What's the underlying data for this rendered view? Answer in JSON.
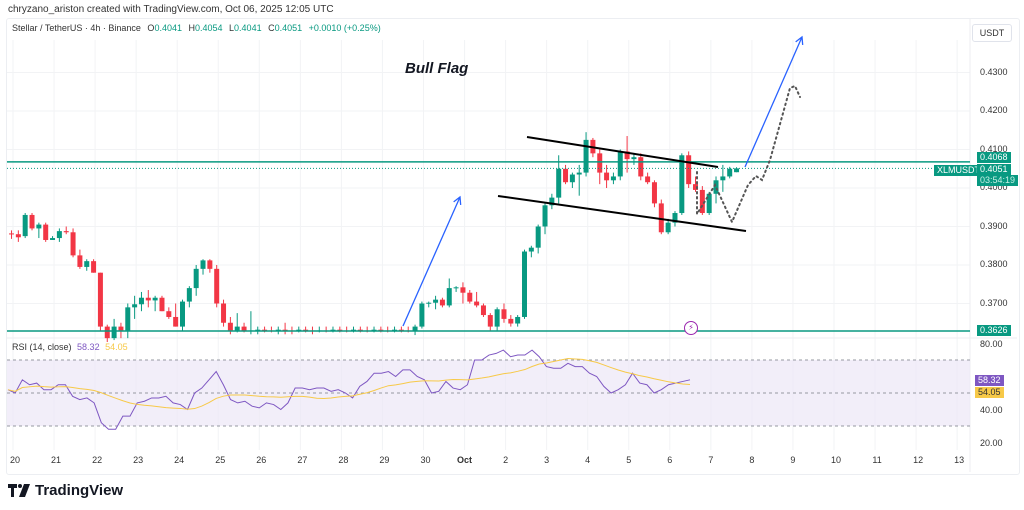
{
  "credit": "chryzano_ariston created with TradingView.com, Oct 06, 2025 12:05 UTC",
  "header": {
    "symbol": "Stellar / TetherUS · 4h · Binance",
    "open_label": "O",
    "open": "0.4041",
    "high_label": "H",
    "high": "0.4054",
    "low_label": "L",
    "low": "0.4041",
    "close_label": "C",
    "close": "0.4051",
    "change": "+0.0010 (+0.25%)"
  },
  "currency_button": "USDT",
  "annotation": "Bull Flag",
  "price_axis": [
    "0.4300",
    "0.4200",
    "0.4100",
    "0.4000",
    "0.3900",
    "0.3800",
    "0.3700"
  ],
  "price_tags": {
    "resistance": "0.4068",
    "symbol": "XLMUSDT",
    "last_price": "0.4051",
    "countdown": "03:54:19",
    "support": "0.3626"
  },
  "rsi": {
    "label": "RSI (14, close)",
    "value": "58.32",
    "ma_value": "54.05",
    "axis": [
      "80.00",
      "40.00",
      "20.00"
    ]
  },
  "date_axis": [
    "20",
    "21",
    "22",
    "23",
    "24",
    "25",
    "26",
    "27",
    "28",
    "29",
    "30",
    "Oct",
    "2",
    "3",
    "4",
    "5",
    "6",
    "7",
    "8",
    "9",
    "10",
    "11",
    "12",
    "13"
  ],
  "brand": "TradingView",
  "colors": {
    "up": "#089981",
    "down": "#f23645",
    "level_line": "#089981",
    "arrow": "#2962ff",
    "rsi_line": "#7e57c2",
    "rsi_ma": "#f7c948",
    "rsi_band": "#ede7f6"
  },
  "chart_data": {
    "type": "candlestick",
    "title": "Stellar / TetherUS · 4h · Binance",
    "annotation": "Bull Flag",
    "xlabel": "",
    "ylabel": "USDT",
    "ylim": [
      0.36,
      0.438
    ],
    "x_ticks": [
      "20",
      "21",
      "22",
      "23",
      "24",
      "25",
      "26",
      "27",
      "28",
      "29",
      "30",
      "Oct",
      "2",
      "3",
      "4",
      "5",
      "6",
      "7",
      "8",
      "9",
      "10",
      "11",
      "12",
      "13"
    ],
    "horizontal_levels": [
      0.4068,
      0.3626
    ],
    "last_price": 0.4051,
    "ohlc_approx": [
      [
        0.3882,
        0.389,
        0.3868,
        0.388
      ],
      [
        0.388,
        0.389,
        0.386,
        0.3872
      ],
      [
        0.3875,
        0.3935,
        0.387,
        0.393
      ],
      [
        0.393,
        0.3935,
        0.389,
        0.3895
      ],
      [
        0.3895,
        0.391,
        0.387,
        0.3905
      ],
      [
        0.3905,
        0.391,
        0.386,
        0.3865
      ],
      [
        0.3865,
        0.3875,
        0.3865,
        0.387
      ],
      [
        0.387,
        0.3895,
        0.386,
        0.3888
      ],
      [
        0.3888,
        0.39,
        0.388,
        0.3885
      ],
      [
        0.3885,
        0.3895,
        0.382,
        0.3825
      ],
      [
        0.3825,
        0.384,
        0.379,
        0.3795
      ],
      [
        0.3795,
        0.3815,
        0.3785,
        0.381
      ],
      [
        0.381,
        0.3815,
        0.378,
        0.378
      ],
      [
        0.378,
        0.378,
        0.363,
        0.364
      ],
      [
        0.364,
        0.3645,
        0.36,
        0.361
      ],
      [
        0.361,
        0.366,
        0.3605,
        0.364
      ],
      [
        0.364,
        0.365,
        0.361,
        0.363
      ],
      [
        0.363,
        0.37,
        0.361,
        0.369
      ],
      [
        0.369,
        0.372,
        0.366,
        0.3698
      ],
      [
        0.3698,
        0.373,
        0.368,
        0.3715
      ],
      [
        0.3715,
        0.3735,
        0.369,
        0.3708
      ],
      [
        0.3708,
        0.372,
        0.368,
        0.3715
      ],
      [
        0.3715,
        0.372,
        0.368,
        0.368
      ],
      [
        0.368,
        0.369,
        0.366,
        0.3665
      ],
      [
        0.3665,
        0.37,
        0.364,
        0.364
      ],
      [
        0.364,
        0.371,
        0.363,
        0.3705
      ],
      [
        0.3705,
        0.3745,
        0.369,
        0.374
      ],
      [
        0.374,
        0.38,
        0.372,
        0.379
      ],
      [
        0.379,
        0.3815,
        0.3775,
        0.3812
      ],
      [
        0.3812,
        0.3815,
        0.378,
        0.379
      ],
      [
        0.379,
        0.38,
        0.369,
        0.37
      ],
      [
        0.37,
        0.371,
        0.364,
        0.365
      ],
      [
        0.365,
        0.3665,
        0.362,
        0.363
      ],
      [
        0.363,
        0.3675,
        0.3625,
        0.364
      ],
      [
        0.364,
        0.365,
        0.3625,
        0.3628
      ],
      [
        0.3628,
        0.368,
        0.362,
        0.363
      ],
      [
        0.363,
        0.364,
        0.362,
        0.3632
      ],
      [
        0.3632,
        0.364,
        0.3625,
        0.363
      ],
      [
        0.363,
        0.364,
        0.3625,
        0.3628
      ],
      [
        0.3628,
        0.364,
        0.362,
        0.3632
      ],
      [
        0.3632,
        0.365,
        0.362,
        0.363
      ],
      [
        0.363,
        0.364,
        0.362,
        0.3628
      ],
      [
        0.3628,
        0.364,
        0.3625,
        0.3632
      ],
      [
        0.3632,
        0.364,
        0.3625,
        0.363
      ],
      [
        0.363,
        0.364,
        0.362,
        0.3628
      ],
      [
        0.3628,
        0.364,
        0.3625,
        0.363
      ],
      [
        0.363,
        0.364,
        0.3625,
        0.3628
      ],
      [
        0.3628,
        0.364,
        0.3625,
        0.3632
      ],
      [
        0.3632,
        0.364,
        0.3625,
        0.363
      ],
      [
        0.363,
        0.364,
        0.3625,
        0.3628
      ],
      [
        0.3628,
        0.364,
        0.3625,
        0.3632
      ],
      [
        0.3632,
        0.364,
        0.3625,
        0.363
      ],
      [
        0.363,
        0.364,
        0.3625,
        0.3628
      ],
      [
        0.3628,
        0.364,
        0.3625,
        0.3632
      ],
      [
        0.3632,
        0.364,
        0.3625,
        0.363
      ],
      [
        0.363,
        0.364,
        0.3625,
        0.3628
      ],
      [
        0.3628,
        0.364,
        0.3625,
        0.3632
      ],
      [
        0.3632,
        0.364,
        0.3625,
        0.363
      ],
      [
        0.363,
        0.364,
        0.3625,
        0.3628
      ],
      [
        0.3628,
        0.3645,
        0.3618,
        0.364
      ],
      [
        0.364,
        0.3705,
        0.3635,
        0.37
      ],
      [
        0.37,
        0.3705,
        0.369,
        0.3702
      ],
      [
        0.3702,
        0.372,
        0.3685,
        0.371
      ],
      [
        0.371,
        0.3715,
        0.369,
        0.3695
      ],
      [
        0.3695,
        0.3765,
        0.369,
        0.374
      ],
      [
        0.374,
        0.3745,
        0.373,
        0.3742
      ],
      [
        0.3742,
        0.3755,
        0.37,
        0.3728
      ],
      [
        0.3728,
        0.3735,
        0.37,
        0.3705
      ],
      [
        0.3705,
        0.373,
        0.369,
        0.3695
      ],
      [
        0.3695,
        0.37,
        0.3665,
        0.367
      ],
      [
        0.367,
        0.3675,
        0.363,
        0.364
      ],
      [
        0.364,
        0.369,
        0.363,
        0.3685
      ],
      [
        0.3685,
        0.37,
        0.365,
        0.366
      ],
      [
        0.366,
        0.367,
        0.364,
        0.3648
      ],
      [
        0.3648,
        0.367,
        0.364,
        0.3665
      ],
      [
        0.3665,
        0.384,
        0.366,
        0.3835
      ],
      [
        0.3835,
        0.385,
        0.382,
        0.3845
      ],
      [
        0.3845,
        0.3905,
        0.383,
        0.39
      ],
      [
        0.39,
        0.396,
        0.388,
        0.3955
      ],
      [
        0.3955,
        0.3985,
        0.3945,
        0.3975
      ],
      [
        0.3975,
        0.4085,
        0.396,
        0.405
      ],
      [
        0.405,
        0.406,
        0.401,
        0.4015
      ],
      [
        0.4015,
        0.404,
        0.4,
        0.4035
      ],
      [
        0.4035,
        0.406,
        0.398,
        0.404
      ],
      [
        0.404,
        0.4145,
        0.403,
        0.4125
      ],
      [
        0.4125,
        0.413,
        0.408,
        0.409
      ],
      [
        0.409,
        0.41,
        0.401,
        0.404
      ],
      [
        0.404,
        0.406,
        0.4,
        0.402
      ],
      [
        0.402,
        0.404,
        0.401,
        0.403
      ],
      [
        0.403,
        0.41,
        0.402,
        0.4095
      ],
      [
        0.4095,
        0.4135,
        0.404,
        0.4075
      ],
      [
        0.4075,
        0.409,
        0.406,
        0.408
      ],
      [
        0.408,
        0.409,
        0.402,
        0.403
      ],
      [
        0.403,
        0.404,
        0.401,
        0.4015
      ],
      [
        0.4015,
        0.402,
        0.395,
        0.396
      ],
      [
        0.396,
        0.397,
        0.388,
        0.3885
      ],
      [
        0.3885,
        0.392,
        0.388,
        0.391
      ],
      [
        0.391,
        0.394,
        0.39,
        0.3935
      ],
      [
        0.3935,
        0.409,
        0.393,
        0.4085
      ],
      [
        0.4085,
        0.4095,
        0.4,
        0.401
      ],
      [
        0.401,
        0.403,
        0.399,
        0.3995
      ],
      [
        0.3995,
        0.4005,
        0.393,
        0.3935
      ],
      [
        0.3935,
        0.399,
        0.393,
        0.3985
      ],
      [
        0.3985,
        0.403,
        0.396,
        0.402
      ],
      [
        0.402,
        0.406,
        0.399,
        0.403
      ],
      [
        0.403,
        0.4055,
        0.4025,
        0.405
      ],
      [
        0.4041,
        0.4054,
        0.4041,
        0.4051
      ]
    ],
    "rsi_series_approx": [
      52,
      50,
      58,
      55,
      56,
      52,
      52,
      55,
      55,
      48,
      46,
      47,
      44,
      32,
      28,
      28,
      36,
      36,
      44,
      45,
      47,
      47,
      48,
      44,
      43,
      40,
      50,
      53,
      58,
      63,
      55,
      46,
      44,
      45,
      42,
      41,
      44,
      43,
      40,
      44,
      53,
      53,
      52,
      53,
      53,
      51,
      52,
      50,
      47,
      54,
      57,
      62,
      62,
      63,
      60,
      64,
      64,
      60,
      58,
      50,
      51,
      57,
      53,
      52,
      55,
      70,
      70,
      73,
      74,
      76,
      72,
      73,
      73,
      76,
      72,
      66,
      65,
      65,
      68,
      66,
      66,
      62,
      60,
      54,
      50,
      52,
      55,
      62,
      56,
      55,
      50,
      52,
      55,
      56,
      57,
      58
    ],
    "rsi_levels": {
      "upper": 70,
      "middle": 50,
      "lower": 30
    },
    "rsi_last": 58.32,
    "rsi_ma_last": 54.05,
    "drawings": [
      {
        "type": "arrow",
        "color": "#2962ff",
        "from": [
          "Sep 29",
          0.364
        ],
        "to": [
          "Sep 30",
          0.399
        ],
        "note": "flagpole projection"
      },
      {
        "type": "trendline",
        "color": "#000000",
        "from": [
          "Oct 2",
          0.414
        ],
        "to": [
          "Oct 7",
          0.406
        ],
        "note": "upper flag"
      },
      {
        "type": "trendline",
        "color": "#000000",
        "from": [
          "Oct 2",
          0.398
        ],
        "to": [
          "Oct 8",
          0.389
        ],
        "note": "lower flag"
      },
      {
        "type": "dotted_path",
        "note": "projected price path zig-zag then breakout toward ~0.4260"
      },
      {
        "type": "arrow",
        "color": "#2962ff",
        "from": [
          "Oct 8",
          0.406
        ],
        "to": [
          "Oct 9",
          0.438
        ],
        "note": "breakout target"
      }
    ]
  }
}
